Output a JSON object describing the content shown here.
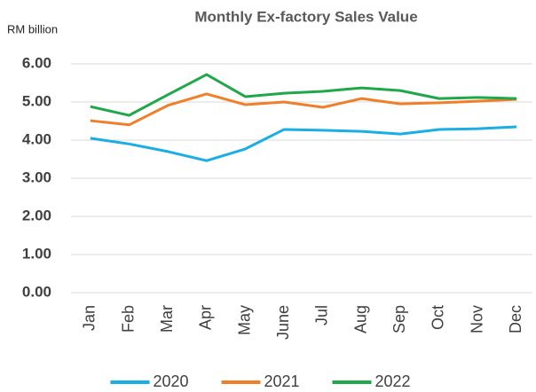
{
  "chart_data": {
    "type": "line",
    "title": "Monthly Ex-factory Sales Value",
    "ylabel": "RM billion",
    "categories": [
      "Jan",
      "Feb",
      "Mar",
      "Apr",
      "May",
      "June",
      "Jul",
      "Aug",
      "Sep",
      "Oct",
      "Nov",
      "Dec"
    ],
    "series": [
      {
        "name": "2020",
        "color": "#1aaee5",
        "values": [
          4.05,
          3.9,
          3.7,
          3.46,
          3.77,
          4.28,
          4.26,
          4.23,
          4.16,
          4.28,
          4.3,
          4.35
        ]
      },
      {
        "name": "2021",
        "color": "#f07f2a",
        "values": [
          4.51,
          4.4,
          4.91,
          5.21,
          4.93,
          5.0,
          4.86,
          5.09,
          4.95,
          4.98,
          5.02,
          5.07
        ]
      },
      {
        "name": "2022",
        "color": "#1fa84a",
        "values": [
          4.88,
          4.65,
          5.19,
          5.72,
          5.14,
          5.23,
          5.28,
          5.37,
          5.3,
          5.09,
          5.12,
          5.09
        ]
      }
    ],
    "ylim": [
      0,
      6
    ],
    "yticks": [
      {
        "value": 0,
        "label": "0.00"
      },
      {
        "value": 1,
        "label": "1.00"
      },
      {
        "value": 2,
        "label": "2.00"
      },
      {
        "value": 3,
        "label": "3.00"
      },
      {
        "value": 4,
        "label": "4.00"
      },
      {
        "value": 5,
        "label": "5.00"
      },
      {
        "value": 6,
        "label": "6.00"
      }
    ],
    "grid": true,
    "legend": "bottom"
  }
}
